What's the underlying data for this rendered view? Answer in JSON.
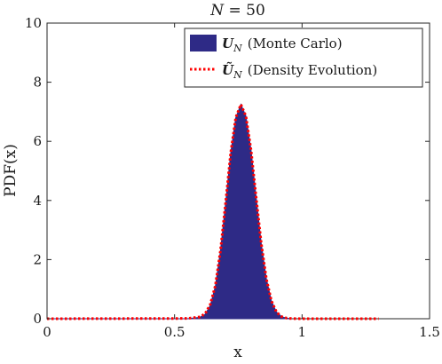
{
  "chart_data": {
    "type": "area",
    "title_var": "N",
    "title_value": "50",
    "xlabel": "x",
    "ylabel": "PDF(x)",
    "xlim": [
      0,
      1.5
    ],
    "ylim": [
      0,
      10
    ],
    "xticks": [
      0,
      0.5,
      1,
      1.5
    ],
    "xtick_labels": [
      "0",
      "0.5",
      "1",
      "1.5"
    ],
    "yticks": [
      0,
      2,
      4,
      6,
      8,
      10
    ],
    "ytick_labels": [
      "0",
      "2",
      "4",
      "6",
      "8",
      "10"
    ],
    "grid": false,
    "legend_position": "top-right",
    "series": [
      {
        "kind": "filled-area",
        "legend_symbol": "U",
        "legend_subscript": "N",
        "legend_label": "(Monte Carlo)",
        "color": "#2e2a86",
        "x": [
          0,
          0.55,
          0.6,
          0.62,
          0.64,
          0.66,
          0.68,
          0.7,
          0.72,
          0.74,
          0.76,
          0.78,
          0.8,
          0.82,
          0.84,
          0.86,
          0.88,
          0.9,
          0.92,
          0.94,
          0.96
        ],
        "y": [
          0,
          0.0,
          0.05,
          0.15,
          0.45,
          1.1,
          2.3,
          3.9,
          5.6,
          6.8,
          7.25,
          6.85,
          5.7,
          4.1,
          2.55,
          1.35,
          0.6,
          0.22,
          0.07,
          0.02,
          0
        ]
      },
      {
        "kind": "dotted-line",
        "legend_symbol": "Ũ",
        "legend_subscript": "N",
        "legend_label": "(Density Evolution)",
        "color": "#ff0000",
        "x": [
          0,
          0.55,
          0.6,
          0.62,
          0.64,
          0.66,
          0.68,
          0.7,
          0.72,
          0.74,
          0.76,
          0.78,
          0.8,
          0.82,
          0.84,
          0.86,
          0.88,
          0.9,
          0.92,
          0.94,
          0.96,
          1.0,
          1.3
        ],
        "y": [
          0,
          0.01,
          0.06,
          0.17,
          0.48,
          1.12,
          2.3,
          3.9,
          5.6,
          6.8,
          7.25,
          6.85,
          5.7,
          4.1,
          2.55,
          1.35,
          0.6,
          0.22,
          0.07,
          0.02,
          0.005,
          0,
          0
        ]
      }
    ]
  }
}
